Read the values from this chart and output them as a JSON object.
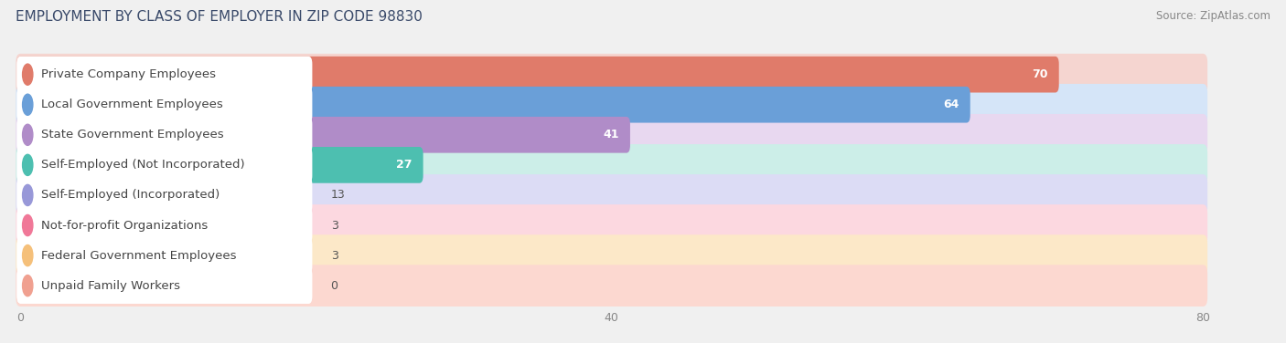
{
  "title": "EMPLOYMENT BY CLASS OF EMPLOYER IN ZIP CODE 98830",
  "source": "Source: ZipAtlas.com",
  "categories": [
    "Private Company Employees",
    "Local Government Employees",
    "State Government Employees",
    "Self-Employed (Not Incorporated)",
    "Self-Employed (Incorporated)",
    "Not-for-profit Organizations",
    "Federal Government Employees",
    "Unpaid Family Workers"
  ],
  "values": [
    70,
    64,
    41,
    27,
    13,
    3,
    3,
    0
  ],
  "bar_colors": [
    "#e07b6a",
    "#6a9fd8",
    "#b08cc8",
    "#4dbfb0",
    "#9898d8",
    "#f07898",
    "#f5c07a",
    "#f0a090"
  ],
  "bar_bg_colors": [
    "#f5d5d0",
    "#d5e5f8",
    "#e8d8f0",
    "#cceee8",
    "#dcdcf5",
    "#fcd8e0",
    "#fce8c8",
    "#fcd8d0"
  ],
  "label_colors": [
    "#c86050",
    "#4878b8",
    "#906898",
    "#289888",
    "#6868b8",
    "#d85878",
    "#d89848",
    "#d07868"
  ],
  "xlim_max": 80,
  "xticks": [
    0,
    40,
    80
  ],
  "background_color": "#f0f0f0",
  "row_bg_color": "#e8e8e8",
  "title_fontsize": 11,
  "label_fontsize": 9.5,
  "value_fontsize": 9,
  "source_fontsize": 8.5
}
